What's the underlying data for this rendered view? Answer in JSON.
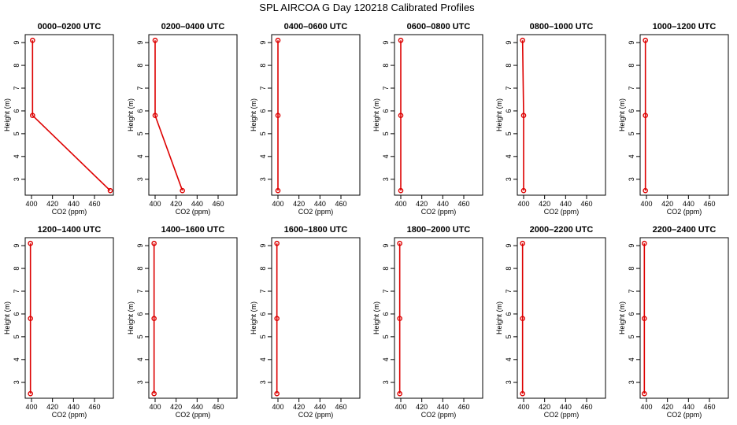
{
  "figure": {
    "title": "SPL AIRCOA G  Day 120218  Calibrated Profiles",
    "line_color": "#dd0000"
  },
  "chart_data": [
    {
      "type": "line",
      "title": "0000–0200 UTC",
      "xlabel": "CO2 (ppm)",
      "ylabel": "Height (m)",
      "xlim": [
        394,
        478
      ],
      "ylim": [
        2.3,
        9.35
      ],
      "xticks": [
        400,
        420,
        440,
        460
      ],
      "yticks": [
        3,
        4,
        5,
        6,
        7,
        8,
        9
      ],
      "series": [
        {
          "x": [
            401,
            401,
            475
          ],
          "y": [
            9.1,
            5.8,
            2.5
          ]
        }
      ]
    },
    {
      "type": "line",
      "title": "0200–0400 UTC",
      "xlabel": "CO2 (ppm)",
      "ylabel": "Height (m)",
      "xlim": [
        394,
        478
      ],
      "ylim": [
        2.3,
        9.35
      ],
      "xticks": [
        400,
        420,
        440,
        460
      ],
      "yticks": [
        3,
        4,
        5,
        6,
        7,
        8,
        9
      ],
      "series": [
        {
          "x": [
            400,
            400,
            426
          ],
          "y": [
            9.1,
            5.8,
            2.5
          ]
        }
      ]
    },
    {
      "type": "line",
      "title": "0400–0600 UTC",
      "xlabel": "CO2 (ppm)",
      "ylabel": "Height (m)",
      "xlim": [
        394,
        478
      ],
      "ylim": [
        2.3,
        9.35
      ],
      "xticks": [
        400,
        420,
        440,
        460
      ],
      "yticks": [
        3,
        4,
        5,
        6,
        7,
        8,
        9
      ],
      "series": [
        {
          "x": [
            400,
            400,
            400
          ],
          "y": [
            9.1,
            5.8,
            2.5
          ]
        }
      ]
    },
    {
      "type": "line",
      "title": "0600–0800 UTC",
      "xlabel": "CO2 (ppm)",
      "ylabel": "Height (m)",
      "xlim": [
        394,
        478
      ],
      "ylim": [
        2.3,
        9.35
      ],
      "xticks": [
        400,
        420,
        440,
        460
      ],
      "yticks": [
        3,
        4,
        5,
        6,
        7,
        8,
        9
      ],
      "series": [
        {
          "x": [
            400,
            400,
            400
          ],
          "y": [
            9.1,
            5.8,
            2.5
          ]
        }
      ]
    },
    {
      "type": "line",
      "title": "0800–1000 UTC",
      "xlabel": "CO2 (ppm)",
      "ylabel": "Height (m)",
      "xlim": [
        394,
        478
      ],
      "ylim": [
        2.3,
        9.35
      ],
      "xticks": [
        400,
        420,
        440,
        460
      ],
      "yticks": [
        3,
        4,
        5,
        6,
        7,
        8,
        9
      ],
      "series": [
        {
          "x": [
            399,
            400,
            400
          ],
          "y": [
            9.1,
            5.8,
            2.5
          ]
        }
      ]
    },
    {
      "type": "line",
      "title": "1000–1200 UTC",
      "xlabel": "CO2 (ppm)",
      "ylabel": "Height (m)",
      "xlim": [
        394,
        478
      ],
      "ylim": [
        2.3,
        9.35
      ],
      "xticks": [
        400,
        420,
        440,
        460
      ],
      "yticks": [
        3,
        4,
        5,
        6,
        7,
        8,
        9
      ],
      "series": [
        {
          "x": [
            399,
            399,
            399
          ],
          "y": [
            9.1,
            5.8,
            2.5
          ]
        }
      ]
    },
    {
      "type": "line",
      "title": "1200–1400 UTC",
      "xlabel": "CO2 (ppm)",
      "ylabel": "Height (m)",
      "xlim": [
        394,
        478
      ],
      "ylim": [
        2.3,
        9.35
      ],
      "xticks": [
        400,
        420,
        440,
        460
      ],
      "yticks": [
        3,
        4,
        5,
        6,
        7,
        8,
        9
      ],
      "series": [
        {
          "x": [
            399,
            399,
            399
          ],
          "y": [
            9.1,
            5.8,
            2.5
          ]
        }
      ]
    },
    {
      "type": "line",
      "title": "1400–1600 UTC",
      "xlabel": "CO2 (ppm)",
      "ylabel": "Height (m)",
      "xlim": [
        394,
        478
      ],
      "ylim": [
        2.3,
        9.35
      ],
      "xticks": [
        400,
        420,
        440,
        460
      ],
      "yticks": [
        3,
        4,
        5,
        6,
        7,
        8,
        9
      ],
      "series": [
        {
          "x": [
            399,
            399,
            399
          ],
          "y": [
            9.1,
            5.8,
            2.5
          ]
        }
      ]
    },
    {
      "type": "line",
      "title": "1600–1800 UTC",
      "xlabel": "CO2 (ppm)",
      "ylabel": "Height (m)",
      "xlim": [
        394,
        478
      ],
      "ylim": [
        2.3,
        9.35
      ],
      "xticks": [
        400,
        420,
        440,
        460
      ],
      "yticks": [
        3,
        4,
        5,
        6,
        7,
        8,
        9
      ],
      "series": [
        {
          "x": [
            399,
            399,
            399
          ],
          "y": [
            9.1,
            5.8,
            2.5
          ]
        }
      ]
    },
    {
      "type": "line",
      "title": "1800–2000 UTC",
      "xlabel": "CO2 (ppm)",
      "ylabel": "Height (m)",
      "xlim": [
        394,
        478
      ],
      "ylim": [
        2.3,
        9.35
      ],
      "xticks": [
        400,
        420,
        440,
        460
      ],
      "yticks": [
        3,
        4,
        5,
        6,
        7,
        8,
        9
      ],
      "series": [
        {
          "x": [
            399,
            399,
            399
          ],
          "y": [
            9.1,
            5.8,
            2.5
          ]
        }
      ]
    },
    {
      "type": "line",
      "title": "2000–2200 UTC",
      "xlabel": "CO2 (ppm)",
      "ylabel": "Height (m)",
      "xlim": [
        394,
        478
      ],
      "ylim": [
        2.3,
        9.35
      ],
      "xticks": [
        400,
        420,
        440,
        460
      ],
      "yticks": [
        3,
        4,
        5,
        6,
        7,
        8,
        9
      ],
      "series": [
        {
          "x": [
            399,
            399,
            399
          ],
          "y": [
            9.1,
            5.8,
            2.5
          ]
        }
      ]
    },
    {
      "type": "line",
      "title": "2200–2400 UTC",
      "xlabel": "CO2 (ppm)",
      "ylabel": "Height (m)",
      "xlim": [
        394,
        478
      ],
      "ylim": [
        2.3,
        9.35
      ],
      "xticks": [
        400,
        420,
        440,
        460
      ],
      "yticks": [
        3,
        4,
        5,
        6,
        7,
        8,
        9
      ],
      "series": [
        {
          "x": [
            398,
            398,
            398
          ],
          "y": [
            9.1,
            5.8,
            2.5
          ]
        }
      ]
    }
  ]
}
